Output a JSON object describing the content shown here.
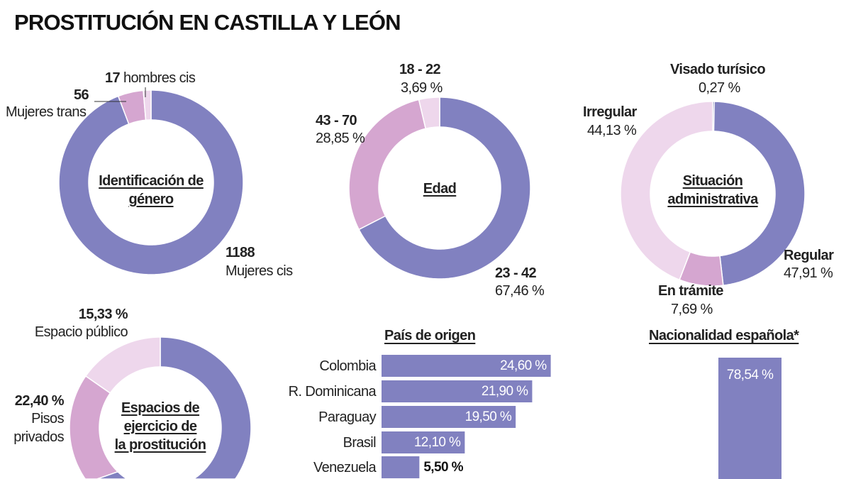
{
  "title": "PROSTITUCIÓN EN CASTILLA Y LEÓN",
  "colors": {
    "purple": "#8181c0",
    "pink": "#d5a6d0",
    "light": "#eed7ec",
    "navy": "#35358f"
  },
  "chart_data": [
    {
      "type": "pie",
      "title": "Identificación de género",
      "donut": true,
      "slices": [
        {
          "label": "Mujeres cis",
          "value": 1188,
          "value_label": "1188",
          "color": "purple"
        },
        {
          "label": "Mujeres trans",
          "value": 56,
          "value_label": "56",
          "color": "pink"
        },
        {
          "label": "hombres cis",
          "value": 17,
          "value_label": "17",
          "color": "light"
        }
      ]
    },
    {
      "type": "pie",
      "title": "Edad",
      "donut": true,
      "slices": [
        {
          "label": "23 - 42",
          "value": 67.46,
          "value_label": "67,46 %",
          "color": "purple"
        },
        {
          "label": "43 - 70",
          "value": 28.85,
          "value_label": "28,85 %",
          "color": "pink"
        },
        {
          "label": "18 - 22",
          "value": 3.69,
          "value_label": "3,69 %",
          "color": "light"
        }
      ]
    },
    {
      "type": "pie",
      "title_lines": [
        "Situación",
        "administrativa"
      ],
      "donut": true,
      "slices": [
        {
          "label": "Visado turísico",
          "value": 0.27,
          "value_label": "0,27 %",
          "color": "navy"
        },
        {
          "label": "Regular",
          "value": 47.91,
          "value_label": "47,91 %",
          "color": "purple"
        },
        {
          "label": "En trámite",
          "value": 7.69,
          "value_label": "7,69 %",
          "color": "pink"
        },
        {
          "label": "Irregular",
          "value": 44.13,
          "value_label": "44,13 %",
          "color": "light"
        }
      ]
    },
    {
      "type": "pie",
      "title_lines": [
        "Espacios de",
        "ejercicio de",
        "la prostitución"
      ],
      "donut": true,
      "slices": [
        {
          "label": "Pisos privados",
          "label_lines": [
            "Pisos",
            "privados"
          ],
          "value": 22.4,
          "value_label": "22,40 %",
          "color": "pink"
        },
        {
          "label": "Espacio público",
          "value": 15.33,
          "value_label": "15,33 %",
          "color": "light"
        }
      ]
    },
    {
      "type": "bar",
      "orientation": "horizontal",
      "title": "País de origen",
      "categories": [
        "Colombia",
        "R. Dominicana",
        "Paraguay",
        "Brasil",
        "Venezuela"
      ],
      "values": [
        24.6,
        21.9,
        19.5,
        12.1,
        5.5
      ],
      "value_labels": [
        "24,60 %",
        "21,90 %",
        "19,50 %",
        "12,10 %",
        "5,50 %"
      ]
    },
    {
      "type": "bar",
      "title": "Nacionalidad española*",
      "values": [
        78.54
      ],
      "value_labels": [
        "78,54 %"
      ]
    }
  ]
}
